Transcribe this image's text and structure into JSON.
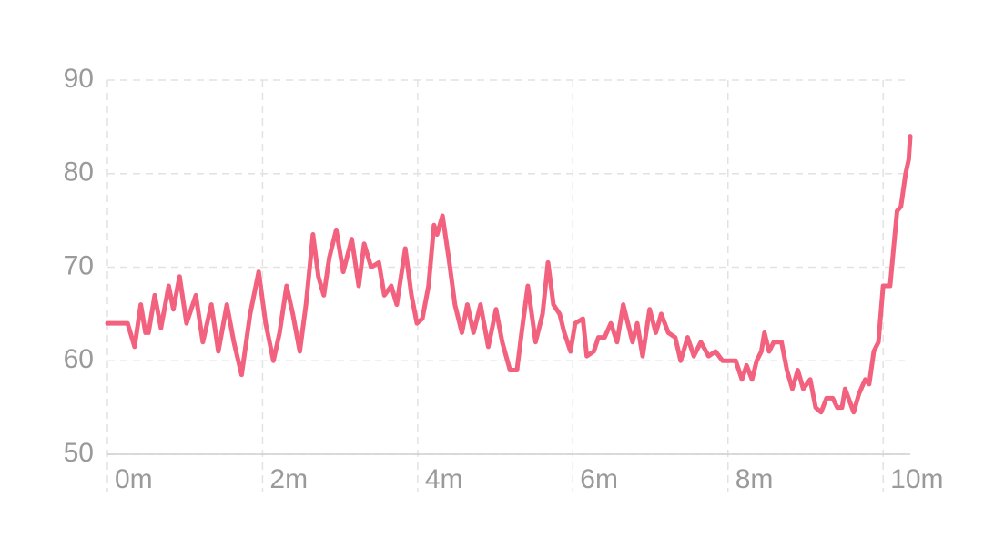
{
  "chart_data": {
    "type": "line",
    "x": [
      0,
      0.26,
      0.35,
      0.43,
      0.49,
      0.53,
      0.61,
      0.69,
      0.79,
      0.85,
      0.93,
      1.02,
      1.14,
      1.23,
      1.34,
      1.43,
      1.54,
      1.63,
      1.73,
      1.84,
      1.95,
      2.04,
      2.14,
      2.22,
      2.31,
      2.39,
      2.48,
      2.56,
      2.65,
      2.72,
      2.79,
      2.86,
      2.95,
      3.04,
      3.15,
      3.24,
      3.31,
      3.4,
      3.5,
      3.57,
      3.66,
      3.73,
      3.84,
      3.92,
      3.99,
      4.06,
      4.14,
      4.21,
      4.25,
      4.32,
      4.4,
      4.48,
      4.57,
      4.64,
      4.72,
      4.81,
      4.91,
      5.01,
      5.09,
      5.19,
      5.28,
      5.34,
      5.42,
      5.52,
      5.61,
      5.68,
      5.75,
      5.83,
      5.89,
      5.97,
      6.03,
      6.13,
      6.18,
      6.27,
      6.33,
      6.41,
      6.49,
      6.57,
      6.65,
      6.71,
      6.77,
      6.83,
      6.9,
      6.99,
      7.07,
      7.14,
      7.23,
      7.32,
      7.39,
      7.48,
      7.56,
      7.65,
      7.75,
      7.84,
      7.93,
      8.1,
      8.18,
      8.24,
      8.31,
      8.37,
      8.43,
      8.47,
      8.53,
      8.59,
      8.69,
      8.76,
      8.83,
      8.9,
      8.97,
      9.06,
      9.13,
      9.2,
      9.27,
      9.35,
      9.41,
      9.47,
      9.51,
      9.62,
      9.69,
      9.77,
      9.82,
      9.88,
      9.94,
      10.0,
      10.09,
      10.18,
      10.23,
      10.29,
      10.33,
      10.35
    ],
    "series": [
      {
        "color": "#f2627e",
        "values": [
          64,
          64,
          61.5,
          66,
          63,
          63,
          67,
          63.5,
          68,
          65.5,
          69,
          64,
          67,
          62,
          66,
          61,
          66,
          62,
          58.5,
          65,
          69.5,
          64,
          60,
          63,
          68,
          65,
          61,
          66,
          73.5,
          69,
          67,
          71,
          74,
          69.5,
          73,
          68,
          72.5,
          70,
          70.5,
          67,
          68,
          66,
          72,
          67,
          64,
          64.5,
          68,
          74.5,
          73.5,
          75.5,
          71,
          66,
          63,
          66,
          63,
          66,
          61.5,
          65.5,
          62,
          59,
          59,
          63,
          68,
          62,
          65,
          70.5,
          66,
          65,
          63,
          61,
          64,
          64.5,
          60.5,
          61,
          62.5,
          62.5,
          64,
          62,
          66,
          64,
          62,
          64,
          60.5,
          65.5,
          63,
          65,
          63,
          62.5,
          60,
          62.5,
          60.5,
          62,
          60.5,
          61,
          60,
          60,
          58,
          59.5,
          58,
          60,
          61,
          63,
          61,
          62,
          62,
          59,
          57,
          59,
          57,
          58,
          55,
          54.5,
          56,
          56,
          55,
          55,
          57,
          54.5,
          56.5,
          58,
          57.5,
          61,
          62,
          68,
          68,
          76,
          76.5,
          80,
          81.5,
          84
        ]
      }
    ],
    "xlim": [
      0,
      10.35
    ],
    "ylim": [
      50,
      90
    ],
    "xticks": [
      {
        "value": 0,
        "label": "0m"
      },
      {
        "value": 2,
        "label": "2m"
      },
      {
        "value": 4,
        "label": "4m"
      },
      {
        "value": 6,
        "label": "6m"
      },
      {
        "value": 8,
        "label": "8m"
      },
      {
        "value": 10,
        "label": "10m"
      }
    ],
    "yticks": [
      50,
      60,
      70,
      80,
      90
    ],
    "grid": true
  }
}
